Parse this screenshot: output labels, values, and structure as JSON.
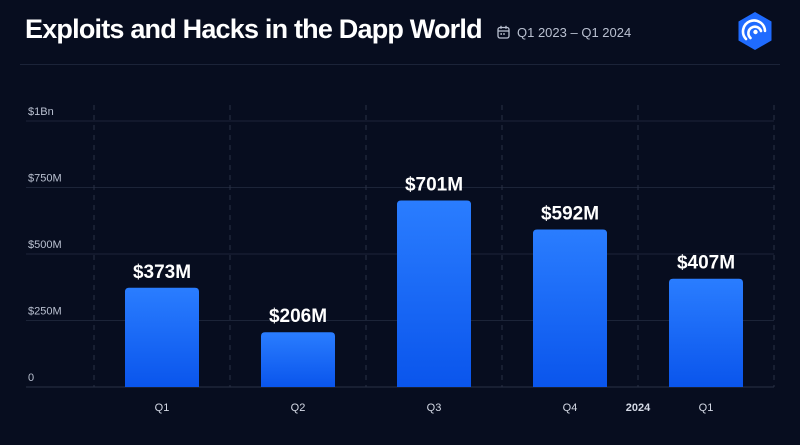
{
  "header": {
    "title": "Exploits and Hacks in the Dapp World",
    "period": "Q1 2023 – Q1 2024",
    "calendar_icon": "calendar-icon",
    "logo_icon": "brand-logo-icon"
  },
  "colors": {
    "background": "#070d1f",
    "bar_top": "#2a7dff",
    "bar_bottom": "#0a55ec",
    "logo": "#1f6bff",
    "text": "#ffffff",
    "muted": "#b9c0d0"
  },
  "chart_data": {
    "type": "bar",
    "title": "Exploits and Hacks in the Dapp World",
    "subtitle": "Q1 2023 – Q1 2024",
    "categories": [
      "Q1",
      "Q2",
      "Q3",
      "Q4",
      "Q1"
    ],
    "values": [
      373,
      206,
      701,
      592,
      407
    ],
    "value_labels": [
      "$373M",
      "$206M",
      "$701M",
      "$592M",
      "$407M"
    ],
    "unit": "$M",
    "ylim": [
      0,
      1000
    ],
    "yticks": [
      0,
      250,
      500,
      750,
      1000
    ],
    "ytick_labels": [
      "0",
      "$250M",
      "$500M",
      "$750M",
      "$1Bn"
    ],
    "year_marker": {
      "label": "2024",
      "between": [
        3,
        4
      ]
    },
    "xlabel": "",
    "ylabel": "",
    "grid": true,
    "legend": "none"
  }
}
